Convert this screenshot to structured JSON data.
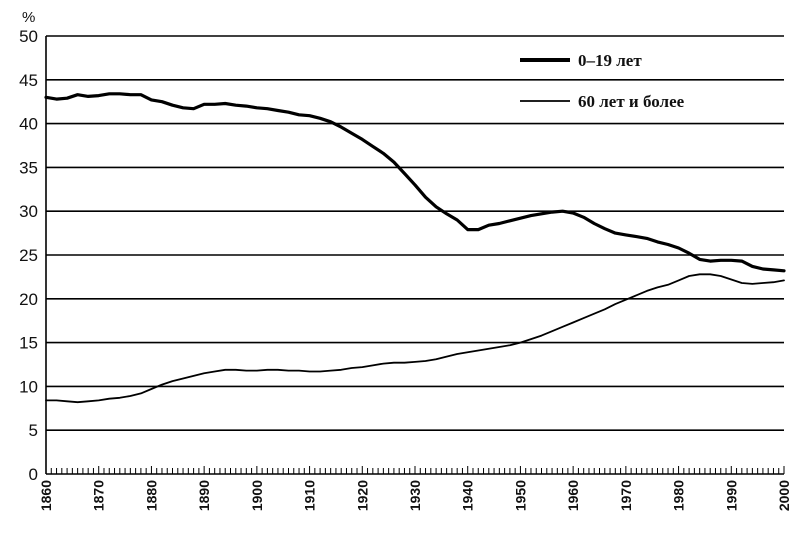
{
  "chart_data": {
    "type": "line",
    "title": "",
    "xlabel": "",
    "ylabel": "%",
    "xlim": [
      1860,
      2000
    ],
    "ylim": [
      0,
      50
    ],
    "grid": "horizontal",
    "legend_position": "top-right",
    "y_ticks": [
      "0",
      "5",
      "10",
      "15",
      "20",
      "25",
      "30",
      "35",
      "40",
      "45",
      "50"
    ],
    "x_ticks": [
      "1860",
      "1870",
      "1880",
      "1890",
      "1900",
      "1910",
      "1920",
      "1930",
      "1940",
      "1950",
      "1960",
      "1970",
      "1980",
      "1990",
      "2000"
    ],
    "series": [
      {
        "name": "0–19 лет",
        "color": "#000000",
        "style": "thick",
        "x": [
          1860,
          1862,
          1864,
          1866,
          1868,
          1870,
          1872,
          1874,
          1876,
          1878,
          1880,
          1882,
          1884,
          1886,
          1888,
          1890,
          1892,
          1894,
          1896,
          1898,
          1900,
          1902,
          1904,
          1906,
          1908,
          1910,
          1912,
          1914,
          1916,
          1918,
          1920,
          1922,
          1924,
          1926,
          1928,
          1930,
          1932,
          1934,
          1936,
          1938,
          1940,
          1942,
          1944,
          1946,
          1948,
          1950,
          1952,
          1954,
          1956,
          1958,
          1960,
          1962,
          1964,
          1966,
          1968,
          1970,
          1972,
          1974,
          1976,
          1978,
          1980,
          1982,
          1984,
          1986,
          1988,
          1990,
          1992,
          1994,
          1996,
          1998,
          2000
        ],
        "values": [
          43.0,
          42.8,
          42.9,
          43.3,
          43.1,
          43.2,
          43.4,
          43.4,
          43.3,
          43.3,
          42.7,
          42.5,
          42.1,
          41.8,
          41.7,
          42.2,
          42.2,
          42.3,
          42.1,
          42.0,
          41.8,
          41.7,
          41.5,
          41.3,
          41.0,
          40.9,
          40.6,
          40.2,
          39.6,
          38.9,
          38.2,
          37.4,
          36.6,
          35.6,
          34.3,
          33.0,
          31.6,
          30.5,
          29.7,
          29.0,
          27.9,
          27.9,
          28.4,
          28.6,
          28.9,
          29.2,
          29.5,
          29.7,
          29.9,
          30.0,
          29.8,
          29.3,
          28.6,
          28.0,
          27.5,
          27.3,
          27.1,
          26.9,
          26.5,
          26.2,
          25.8,
          25.2,
          24.5,
          24.3,
          24.4,
          24.4,
          24.3,
          23.7,
          23.4,
          23.3,
          23.2
        ]
      },
      {
        "name": "60 лет и более",
        "color": "#000000",
        "style": "thin",
        "x": [
          1860,
          1862,
          1864,
          1866,
          1868,
          1870,
          1872,
          1874,
          1876,
          1878,
          1880,
          1882,
          1884,
          1886,
          1888,
          1890,
          1892,
          1894,
          1896,
          1898,
          1900,
          1902,
          1904,
          1906,
          1908,
          1910,
          1912,
          1914,
          1916,
          1918,
          1920,
          1922,
          1924,
          1926,
          1928,
          1930,
          1932,
          1934,
          1936,
          1938,
          1940,
          1942,
          1944,
          1946,
          1948,
          1950,
          1952,
          1954,
          1956,
          1958,
          1960,
          1962,
          1964,
          1966,
          1968,
          1970,
          1972,
          1974,
          1976,
          1978,
          1980,
          1982,
          1984,
          1986,
          1988,
          1990,
          1992,
          1994,
          1996,
          1998,
          2000
        ],
        "values": [
          8.4,
          8.4,
          8.3,
          8.2,
          8.3,
          8.4,
          8.6,
          8.7,
          8.9,
          9.2,
          9.7,
          10.2,
          10.6,
          10.9,
          11.2,
          11.5,
          11.7,
          11.9,
          11.9,
          11.8,
          11.8,
          11.9,
          11.9,
          11.8,
          11.8,
          11.7,
          11.7,
          11.8,
          11.9,
          12.1,
          12.2,
          12.4,
          12.6,
          12.7,
          12.7,
          12.8,
          12.9,
          13.1,
          13.4,
          13.7,
          13.9,
          14.1,
          14.3,
          14.5,
          14.7,
          15.0,
          15.4,
          15.8,
          16.3,
          16.8,
          17.3,
          17.8,
          18.3,
          18.8,
          19.4,
          19.9,
          20.4,
          20.9,
          21.3,
          21.6,
          22.1,
          22.6,
          22.8,
          22.8,
          22.6,
          22.2,
          21.8,
          21.7,
          21.8,
          21.9,
          22.1
        ]
      }
    ]
  }
}
